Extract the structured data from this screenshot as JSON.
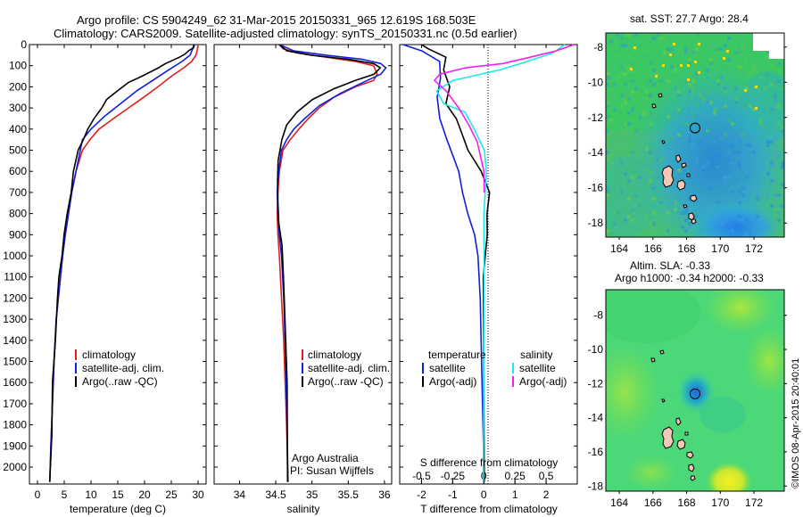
{
  "title": {
    "line1": "Argo profile: CS 5904249_62 31-Mar-2015 20150331_965 12.619S 168.503E",
    "line2": "Climatology: CARS2009. Satellite-adjusted climatology: synTS_20150331.nc (0.5d earlier)"
  },
  "colors": {
    "climatology": "#e02020",
    "satellite": "#1020d8",
    "argo": "#000000",
    "sal_satellite": "#20e8e8",
    "sal_argo": "#f020f0"
  },
  "chart_data": [
    {
      "type": "line",
      "name": "temperature-panel",
      "xlabel": "temperature (deg C)",
      "ylabel": "",
      "xlim": [
        -1.5,
        31.5
      ],
      "ylim": [
        2080,
        0
      ],
      "xticks": [
        "0",
        "5",
        "10",
        "15",
        "20",
        "25",
        "30"
      ],
      "xtick_values": [
        0,
        5,
        10,
        15,
        20,
        25,
        30
      ],
      "yticks": [
        "0",
        "100",
        "200",
        "300",
        "400",
        "500",
        "600",
        "700",
        "800",
        "900",
        "1000",
        "1100",
        "1200",
        "1300",
        "1400",
        "1500",
        "1600",
        "1700",
        "1800",
        "1900",
        "2000"
      ],
      "ytick_values": [
        0,
        100,
        200,
        300,
        400,
        500,
        600,
        700,
        800,
        900,
        1000,
        1100,
        1200,
        1300,
        1400,
        1500,
        1600,
        1700,
        1800,
        1900,
        2000
      ],
      "legend": [
        "climatology",
        "satellite-adj. clim.",
        "Argo(..raw -QC)"
      ],
      "legend_position": "lower-middle",
      "series": [
        {
          "name": "climatology",
          "color": "#e02020",
          "x": [
            30.0,
            29.9,
            29.6,
            28.8,
            27.3,
            25.0,
            22.5,
            19.8,
            17.0,
            14.2,
            11.5,
            9.8,
            8.4,
            7.2,
            6.4,
            5.8,
            5.2,
            4.7,
            4.3,
            3.9,
            3.5,
            3.1,
            2.8,
            2.5,
            2.3
          ],
          "y": [
            0,
            20,
            50,
            80,
            110,
            150,
            200,
            250,
            300,
            350,
            400,
            450,
            500,
            600,
            700,
            800,
            900,
            1000,
            1100,
            1200,
            1300,
            1500,
            1700,
            1900,
            2070
          ]
        },
        {
          "name": "satellite-adj. clim.",
          "color": "#1020d8",
          "x": [
            29.2,
            29.0,
            28.5,
            27.0,
            24.5,
            21.5,
            18.5,
            15.5,
            12.5,
            10.0,
            8.4,
            7.2,
            6.4,
            5.8,
            5.2,
            4.7,
            4.3,
            3.9,
            3.5,
            3.1,
            2.8,
            2.5,
            2.3
          ],
          "y": [
            0,
            20,
            50,
            80,
            120,
            170,
            220,
            280,
            340,
            400,
            450,
            600,
            700,
            800,
            900,
            1000,
            1100,
            1200,
            1300,
            1500,
            1700,
            1900,
            2070
          ]
        },
        {
          "name": "Argo(..raw -QC)",
          "color": "#000000",
          "x": [
            29.3,
            29.1,
            28.3,
            27.5,
            26.5,
            24.0,
            22.5,
            19.5,
            17.0,
            14.8,
            13.0,
            12.0,
            10.5,
            9.5,
            8.5,
            7.6,
            6.8,
            6.2,
            5.6,
            5.0,
            4.5,
            4.1,
            3.7,
            3.3,
            2.9,
            2.6,
            2.3
          ],
          "y": [
            0,
            15,
            30,
            45,
            60,
            90,
            110,
            150,
            180,
            220,
            260,
            300,
            350,
            400,
            450,
            500,
            600,
            700,
            800,
            900,
            1000,
            1100,
            1200,
            1400,
            1600,
            1850,
            2070
          ]
        }
      ]
    },
    {
      "type": "line",
      "name": "salinity-panel",
      "xlabel": "salinity",
      "xlim": [
        33.65,
        36.1
      ],
      "ylim": [
        2080,
        0
      ],
      "xticks": [
        "34",
        "34.5",
        "35",
        "35.5",
        "36"
      ],
      "xtick_values": [
        34,
        34.5,
        35,
        35.5,
        36
      ],
      "legend": [
        "climatology",
        "satellite-adj. clim.",
        "Argo(..raw -QC)"
      ],
      "legend_position": "lower-middle",
      "series": [
        {
          "name": "climatology",
          "color": "#e02020",
          "x": [
            34.55,
            34.6,
            34.8,
            35.2,
            35.6,
            35.85,
            35.9,
            35.85,
            35.6,
            35.3,
            35.1,
            34.95,
            34.82,
            34.7,
            34.6,
            34.55,
            34.53,
            34.52,
            34.53,
            34.55,
            34.58,
            34.61,
            34.63,
            34.65,
            34.67
          ],
          "y": [
            0,
            20,
            40,
            60,
            80,
            100,
            140,
            170,
            200,
            250,
            300,
            350,
            400,
            450,
            500,
            600,
            700,
            800,
            900,
            1000,
            1200,
            1400,
            1600,
            1800,
            2070
          ]
        },
        {
          "name": "satellite-adj. clim.",
          "color": "#1020d8",
          "x": [
            34.55,
            34.75,
            35.2,
            35.7,
            35.95,
            36.02,
            35.95,
            35.7,
            35.4,
            35.1,
            34.9,
            34.75,
            34.65,
            34.58,
            34.54,
            34.52,
            34.53,
            34.55,
            34.58,
            34.61,
            34.63,
            34.65,
            34.67
          ],
          "y": [
            0,
            30,
            50,
            70,
            90,
            110,
            140,
            180,
            230,
            290,
            350,
            400,
            450,
            500,
            600,
            700,
            800,
            900,
            1000,
            1200,
            1400,
            1700,
            2070
          ]
        },
        {
          "name": "Argo(..raw -QC)",
          "color": "#000000",
          "x": [
            34.55,
            34.65,
            35.0,
            35.5,
            35.85,
            35.95,
            35.85,
            35.6,
            35.3,
            35.0,
            34.8,
            34.65,
            34.58,
            34.54,
            34.52,
            34.53,
            34.55,
            34.58,
            34.61,
            34.63,
            34.65,
            34.67
          ],
          "y": [
            0,
            30,
            50,
            70,
            90,
            110,
            140,
            170,
            210,
            260,
            320,
            380,
            450,
            550,
            650,
            750,
            850,
            950,
            1100,
            1300,
            1600,
            2070
          ]
        }
      ]
    },
    {
      "type": "line",
      "name": "difference-panel",
      "xlabel": "T difference from climatology",
      "top_label": "S difference from climatology",
      "xlim": [
        -2.7,
        3.0
      ],
      "ylim": [
        2080,
        0
      ],
      "xticks": [
        "-2",
        "-1",
        "0",
        "1",
        "2"
      ],
      "xtick_values": [
        -2,
        -1,
        0,
        1,
        2
      ],
      "sticks": [
        "-0.5",
        "-0.25",
        "0",
        "0.25",
        "0.5"
      ],
      "stick_values": [
        -2,
        -1,
        0,
        1,
        2
      ],
      "legend_left_title": "temperature",
      "legend_right_title": "salinity",
      "legend_left": [
        "satellite",
        "Argo(-adj)"
      ],
      "legend_right": [
        "satellite",
        "Argo(-adj)"
      ],
      "series": [
        {
          "name": "T satellite",
          "color": "#1020d8",
          "x": [
            -2.6,
            -2.0,
            -1.4,
            -1.4,
            -1.5,
            -1.4,
            -1.2,
            -1.0,
            -0.8,
            -0.7,
            -0.5,
            -0.3,
            -0.2,
            -0.1,
            0.0
          ],
          "y": [
            0,
            30,
            80,
            160,
            250,
            350,
            450,
            520,
            600,
            700,
            800,
            900,
            1000,
            1200,
            2070
          ]
        },
        {
          "name": "T Argo(-adj)",
          "color": "#000000",
          "x": [
            -2.0,
            -1.8,
            -1.2,
            -1.3,
            -1.1,
            -1.2,
            -0.9,
            -0.7,
            -0.5,
            -0.1,
            0.2,
            0.1,
            0.1,
            0.0,
            0.0
          ],
          "y": [
            0,
            20,
            60,
            120,
            200,
            280,
            350,
            420,
            500,
            600,
            700,
            800,
            900,
            1100,
            2070
          ]
        },
        {
          "name": "S satellite",
          "color": "#20e8e8",
          "x": [
            2.6,
            2.2,
            1.2,
            0.5,
            -1.0,
            -1.5,
            -1.3,
            -0.6,
            -0.3,
            0.0,
            0.1,
            0.0,
            0.0,
            0.0
          ],
          "y": [
            0,
            40,
            90,
            120,
            170,
            220,
            280,
            320,
            400,
            500,
            600,
            800,
            1100,
            2070
          ]
        },
        {
          "name": "S Argo(-adj)",
          "color": "#f020f0",
          "x": [
            2.9,
            2.3,
            1.5,
            0.6,
            -0.6,
            -1.4,
            -1.6,
            -1.2,
            -0.8,
            -0.5,
            -0.2,
            0.0,
            0.0
          ],
          "y": [
            0,
            30,
            60,
            90,
            110,
            140,
            170,
            220,
            300,
            380,
            460,
            600,
            700
          ]
        }
      ]
    }
  ],
  "maps": [
    {
      "name": "sst-map",
      "title": "sat. SST: 27.7  Argo: 28.4",
      "xticks": [
        "164",
        "166",
        "168",
        "170",
        "172"
      ],
      "xtick_values": [
        164,
        166,
        168,
        170,
        172
      ],
      "yticks": [
        "-8",
        "-10",
        "-12",
        "-14",
        "-16",
        "-18"
      ],
      "ytick_values": [
        -8,
        -10,
        -12,
        -14,
        -16,
        -18
      ],
      "lon_range": [
        163.2,
        173.8
      ],
      "lat_range": [
        -18.8,
        -7.2
      ],
      "marker": {
        "lon": 168.5,
        "lat": -12.6
      }
    },
    {
      "name": "sla-map",
      "title_line1": "Altim. SLA: -0.33",
      "title_line2": "Argo h1000: -0.34  h2000: -0.33",
      "xticks": [
        "164",
        "166",
        "168",
        "170",
        "172"
      ],
      "xtick_values": [
        164,
        166,
        168,
        170,
        172
      ],
      "yticks": [
        "-8",
        "-10",
        "-12",
        "-14",
        "-16",
        "-18"
      ],
      "ytick_values": [
        -8,
        -10,
        -12,
        -14,
        -16,
        -18
      ],
      "lon_range": [
        163.2,
        173.8
      ],
      "lat_range": [
        -18.3,
        -6.5
      ],
      "marker": {
        "lon": 168.5,
        "lat": -12.6
      }
    }
  ],
  "annotations": {
    "org": "Argo Australia",
    "pi": "PI: Susan Wijffels",
    "credit": "©IMOS 08-Apr-2015 20:40:01"
  }
}
